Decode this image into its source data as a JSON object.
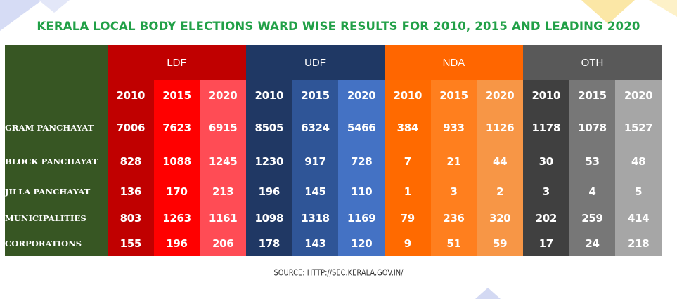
{
  "title": "KERALA LOCAL BODY ELECTIONS WARD WISE RESULTS FOR 2010, 2015 AND LEADING 2020",
  "source": "SOURCE: HTTP://SEC.KERALA.GOV.IN/",
  "chart_data": {
    "type": "table",
    "title": "KERALA LOCAL BODY ELECTIONS WARD WISE RESULTS FOR 2010, 2015 AND LEADING 2020",
    "groups": [
      "LDF",
      "UDF",
      "NDA",
      "OTH"
    ],
    "years": [
      "2010",
      "2015",
      "2020"
    ],
    "rows": [
      {
        "label": "GRAM PANCHAYAT",
        "values": [
          "7006",
          "7623",
          "6915",
          "8505",
          "6324",
          "5466",
          "384",
          "933",
          "1126",
          "1178",
          "1078",
          "1527"
        ]
      },
      {
        "label": "BLOCK PANCHAYAT",
        "values": [
          "828",
          "1088",
          "1245",
          "1230",
          "917",
          "728",
          "7",
          "21",
          "44",
          "30",
          "53",
          "48"
        ]
      },
      {
        "label": "JILLA PANCHAYAT",
        "values": [
          "136",
          "170",
          "213",
          "196",
          "145",
          "110",
          "1",
          "3",
          "2",
          "3",
          "4",
          "5"
        ]
      },
      {
        "label": "MUNICIPALITIES",
        "values": [
          "803",
          "1263",
          "1161",
          "1098",
          "1318",
          "1169",
          "79",
          "236",
          "320",
          "202",
          "259",
          "414"
        ]
      },
      {
        "label": "CORPORATIONS",
        "values": [
          "155",
          "196",
          "206",
          "178",
          "143",
          "120",
          "9",
          "51",
          "59",
          "17",
          "24",
          "218"
        ]
      }
    ]
  },
  "colors": {
    "label_bg": "#375623",
    "title": "#21a047",
    "group_header": [
      "#c00000",
      "#1f3864",
      "#ff6600",
      "#595959"
    ],
    "columns": [
      "#c00000",
      "#ff0000",
      "#ff4c55",
      "#203864",
      "#2f5597",
      "#4472c4",
      "#ff6a00",
      "#ff7f1e",
      "#f79646",
      "#404040",
      "#777777",
      "#a6a6a6"
    ]
  }
}
